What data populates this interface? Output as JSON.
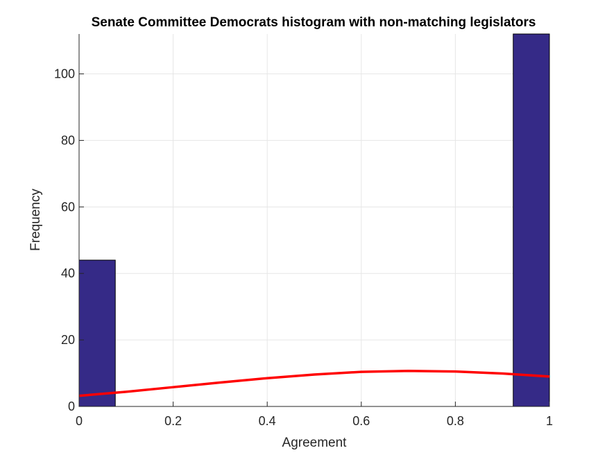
{
  "chart_data": {
    "type": "bar",
    "title": "Senate Committee Democrats histogram with non-matching legislators",
    "xlabel": "Agreement",
    "ylabel": "Frequency",
    "xlim": [
      0,
      1
    ],
    "ylim": [
      0,
      112
    ],
    "xticks": [
      "0",
      "0.2",
      "0.4",
      "0.6",
      "0.8",
      "1"
    ],
    "yticks": [
      "0",
      "20",
      "40",
      "60",
      "80",
      "100"
    ],
    "grid": true,
    "bar_color": "#352A87",
    "bins": [
      {
        "x0": 0.0,
        "x1": 0.077,
        "value": 44
      },
      {
        "x0": 0.923,
        "x1": 1.0,
        "value": 112
      }
    ],
    "fit_curve": {
      "color": "#FF0000",
      "x": [
        0.0,
        0.1,
        0.2,
        0.3,
        0.4,
        0.5,
        0.6,
        0.7,
        0.8,
        0.9,
        1.0
      ],
      "y": [
        3.2,
        4.4,
        5.8,
        7.2,
        8.5,
        9.6,
        10.4,
        10.7,
        10.5,
        9.9,
        9.0
      ]
    }
  }
}
